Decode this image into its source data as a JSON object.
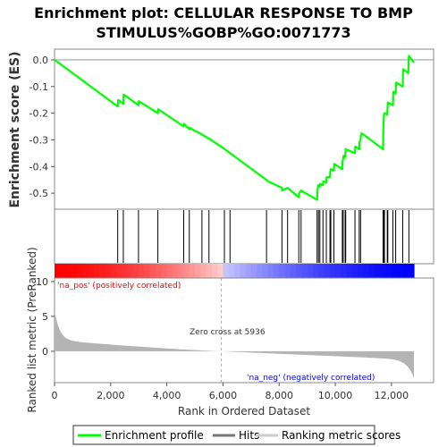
{
  "chart_data": {
    "type": "line",
    "title_line1": "Enrichment plot: CELLULAR RESPONSE TO BMP",
    "title_line2": "STIMULUS%GOBP%GO:0071773",
    "es_panel": {
      "ylabel": "Enrichment score (ES)",
      "ylim": [
        -0.56,
        0.04
      ],
      "yticks": [
        0.0,
        -0.1,
        -0.2,
        -0.3,
        -0.4,
        -0.5
      ],
      "ytick_labels": [
        "0.0",
        "-0.1",
        "-0.2",
        "-0.3",
        "-0.4",
        "-0.5"
      ],
      "line_color": "#00ff00",
      "points": [
        [
          0,
          0.0
        ],
        [
          2250,
          -0.175
        ],
        [
          2260,
          -0.16
        ],
        [
          2270,
          -0.15
        ],
        [
          2450,
          -0.165
        ],
        [
          2460,
          -0.13
        ],
        [
          2990,
          -0.17
        ],
        [
          3000,
          -0.155
        ],
        [
          3680,
          -0.2
        ],
        [
          3690,
          -0.185
        ],
        [
          4600,
          -0.25
        ],
        [
          4610,
          -0.24
        ],
        [
          4800,
          -0.26
        ],
        [
          4810,
          -0.255
        ],
        [
          5250,
          -0.28
        ],
        [
          5500,
          -0.295
        ],
        [
          6000,
          -0.33
        ],
        [
          6250,
          -0.35
        ],
        [
          7550,
          -0.45
        ],
        [
          7600,
          -0.455
        ],
        [
          8100,
          -0.48
        ],
        [
          8110,
          -0.49
        ],
        [
          8300,
          -0.48
        ],
        [
          8700,
          -0.515
        ],
        [
          8710,
          -0.5
        ],
        [
          8780,
          -0.49
        ],
        [
          9350,
          -0.525
        ],
        [
          9360,
          -0.49
        ],
        [
          9380,
          -0.48
        ],
        [
          9390,
          -0.47
        ],
        [
          9450,
          -0.475
        ],
        [
          9460,
          -0.465
        ],
        [
          9560,
          -0.47
        ],
        [
          9570,
          -0.455
        ],
        [
          9680,
          -0.46
        ],
        [
          9690,
          -0.44
        ],
        [
          9810,
          -0.44
        ],
        [
          9820,
          -0.42
        ],
        [
          9840,
          -0.41
        ],
        [
          9950,
          -0.415
        ],
        [
          9960,
          -0.39
        ],
        [
          10250,
          -0.41
        ],
        [
          10260,
          -0.38
        ],
        [
          10280,
          -0.37
        ],
        [
          10290,
          -0.36
        ],
        [
          10350,
          -0.365
        ],
        [
          10360,
          -0.345
        ],
        [
          10370,
          -0.335
        ],
        [
          10700,
          -0.35
        ],
        [
          10710,
          -0.325
        ],
        [
          10850,
          -0.335
        ],
        [
          10860,
          -0.31
        ],
        [
          10900,
          -0.3
        ],
        [
          10910,
          -0.285
        ],
        [
          10940,
          -0.275
        ],
        [
          11700,
          -0.335
        ],
        [
          11710,
          -0.25
        ],
        [
          11720,
          -0.23
        ],
        [
          11730,
          -0.21
        ],
        [
          11750,
          -0.2
        ],
        [
          11850,
          -0.205
        ],
        [
          11860,
          -0.18
        ],
        [
          11870,
          -0.16
        ],
        [
          12050,
          -0.17
        ],
        [
          12060,
          -0.13
        ],
        [
          12070,
          -0.12
        ],
        [
          12150,
          -0.125
        ],
        [
          12160,
          -0.095
        ],
        [
          12170,
          -0.085
        ],
        [
          12400,
          -0.1
        ],
        [
          12410,
          -0.05
        ],
        [
          12420,
          -0.035
        ],
        [
          12600,
          -0.05
        ],
        [
          12610,
          -0.01
        ],
        [
          12620,
          0.015
        ],
        [
          12800,
          -0.01
        ]
      ]
    },
    "hits": [
      2250,
      2450,
      2990,
      3680,
      4600,
      4800,
      5250,
      5500,
      6050,
      6250,
      7550,
      8100,
      8300,
      8700,
      8780,
      9350,
      9400,
      9450,
      9560,
      9680,
      9810,
      9840,
      9950,
      10250,
      10280,
      10350,
      10370,
      10700,
      10850,
      10900,
      11700,
      11730,
      11750,
      11850,
      11870,
      12050,
      12150,
      12400,
      12620
    ],
    "ranked_panel": {
      "ylabel": "Ranked list metric (PreRanked)",
      "xlabel": "Rank in Ordered Dataset",
      "xlim": [
        0,
        13500
      ],
      "xticks": [
        0,
        2000,
        4000,
        6000,
        8000,
        10000,
        12000
      ],
      "xtick_labels": [
        "0",
        "2,000",
        "4,000",
        "6,000",
        "8,000",
        "10,000",
        "12,000"
      ],
      "ylim": [
        -4.5,
        10.5
      ],
      "yticks": [
        10,
        5,
        0
      ],
      "ytick_labels": [
        "10",
        "5",
        "0"
      ],
      "n_genes": 12800,
      "zero_cross": 5936,
      "zero_cross_label": "Zero cross at 5936",
      "pos_label": "'na_pos' (positively correlated)",
      "neg_label": "'na_neg' (negatively correlated)",
      "pos_color": "#ff0000",
      "neg_color": "#0000ff",
      "fill_color": "#b4b4b4"
    },
    "legend": {
      "placement": "bottom",
      "items": [
        {
          "label": "Enrichment profile",
          "color": "#00ff00"
        },
        {
          "label": "Hits",
          "color": "#777777"
        },
        {
          "label": "Ranking metric scores",
          "color": "#cccccc"
        }
      ]
    }
  }
}
